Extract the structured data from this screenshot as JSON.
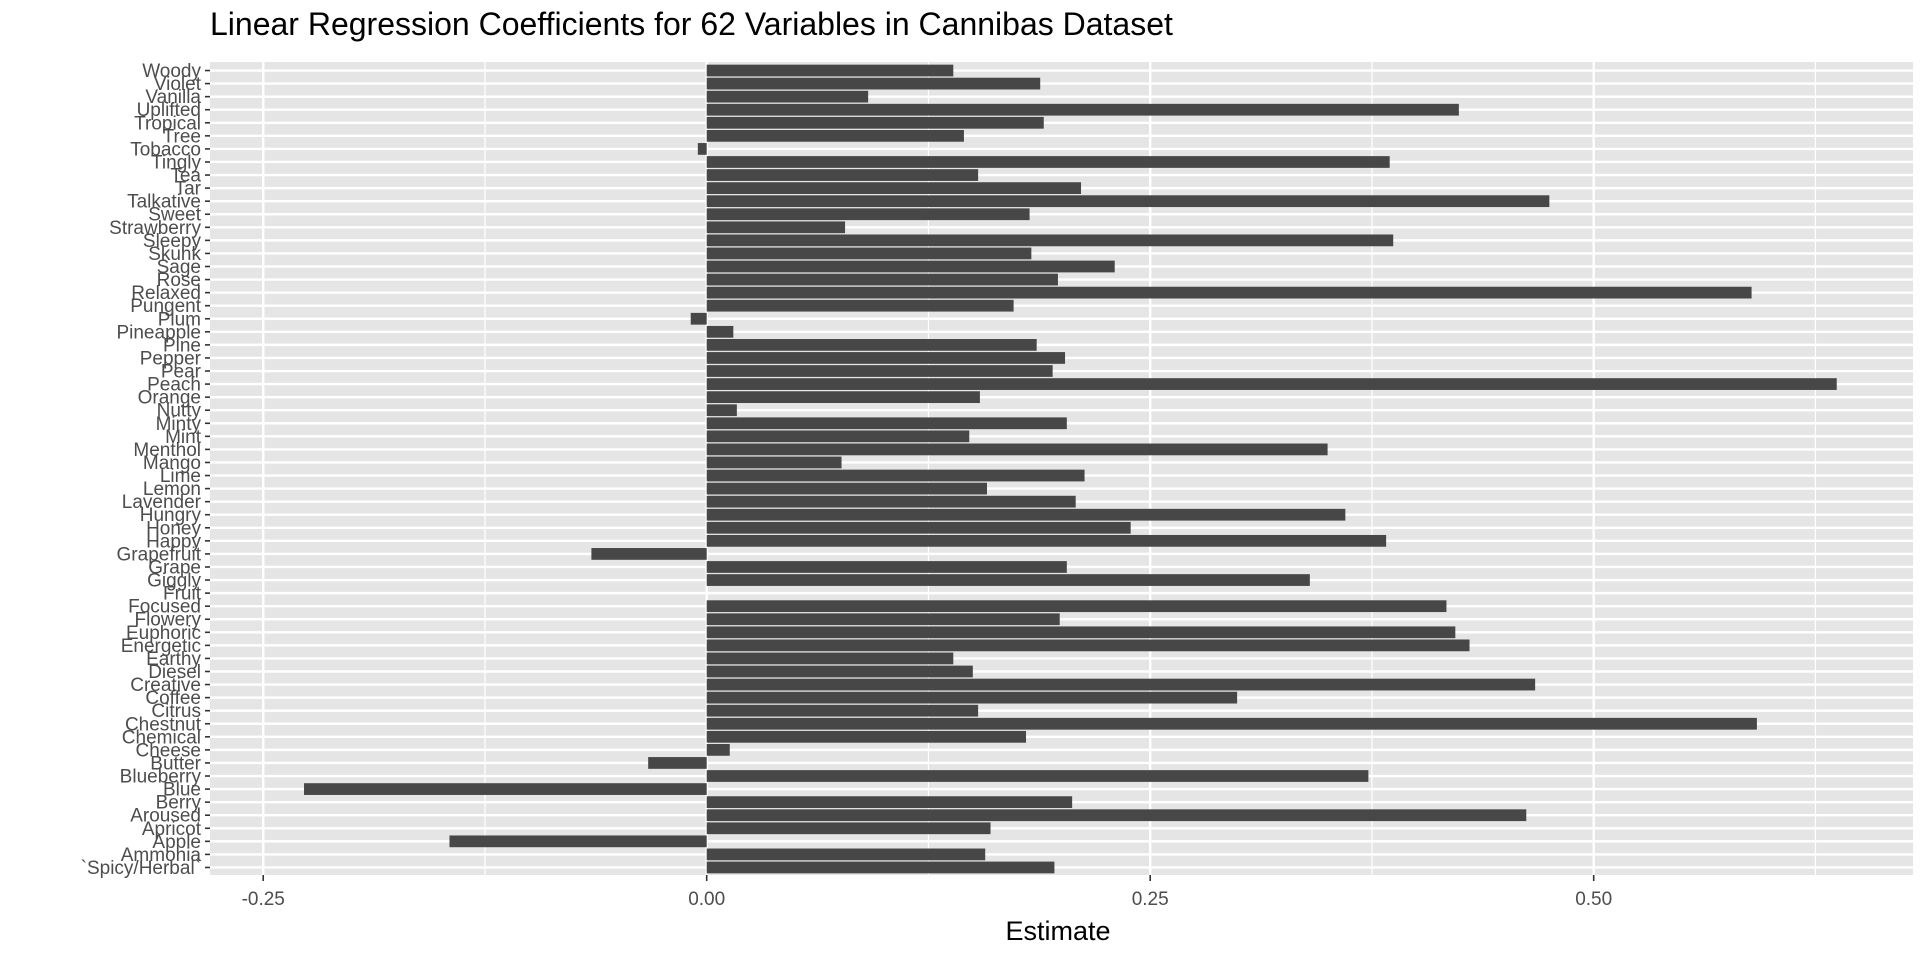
{
  "chart_data": {
    "type": "bar",
    "orientation": "horizontal",
    "title": "Linear Regression Coefficients for 62 Variables in Cannibas Dataset",
    "xlabel": "Estimate",
    "ylabel": "",
    "xlim": [
      -0.28,
      0.68
    ],
    "xticks": [
      -0.25,
      0.0,
      0.25,
      0.5
    ],
    "xtick_labels": [
      "-0.25",
      "0.00",
      "0.25",
      "0.50"
    ],
    "grid": true,
    "bar_color": "#474747",
    "panel_color": "#e5e5e5",
    "grid_color": "#ffffff",
    "categories": [
      "`Spicy/Herbal`",
      "Ammonia",
      "Apple",
      "Apricot",
      "Aroused",
      "Berry",
      "Blue",
      "Blueberry",
      "Butter",
      "Cheese",
      "Chemical",
      "Chestnut",
      "Citrus",
      "Coffee",
      "Creative",
      "Diesel",
      "Earthy",
      "Energetic",
      "Euphoric",
      "Flowery",
      "Focused",
      "Fruit",
      "Giggly",
      "Grape",
      "Grapefruit",
      "Happy",
      "Honey",
      "Hungry",
      "Lavender",
      "Lemon",
      "Lime",
      "Mango",
      "Menthol",
      "Mint",
      "Minty",
      "Nutty",
      "Orange",
      "Peach",
      "Pear",
      "Pepper",
      "Pine",
      "Pineapple",
      "Plum",
      "Pungent",
      "Relaxed",
      "Rose",
      "Sage",
      "Skunk",
      "Sleepy",
      "Strawberry",
      "Sweet",
      "Talkative",
      "Tar",
      "Tea",
      "Tingly",
      "Tobacco",
      "Tree",
      "Tropical",
      "Uplifted",
      "Vanilla",
      "Violet",
      "Woody"
    ],
    "values": [
      0.196,
      0.157,
      -0.145,
      0.16,
      0.462,
      0.206,
      -0.227,
      0.373,
      -0.033,
      0.013,
      0.18,
      0.592,
      0.153,
      0.299,
      0.467,
      0.15,
      0.139,
      0.43,
      0.422,
      0.199,
      0.417,
      0.0,
      0.34,
      0.203,
      -0.065,
      0.383,
      0.239,
      0.36,
      0.208,
      0.158,
      0.213,
      0.076,
      0.35,
      0.148,
      0.203,
      0.017,
      0.154,
      0.637,
      0.195,
      0.202,
      0.186,
      0.015,
      -0.009,
      0.173,
      0.589,
      0.198,
      0.23,
      0.183,
      0.387,
      0.078,
      0.182,
      0.475,
      0.211,
      0.153,
      0.385,
      -0.005,
      0.145,
      0.19,
      0.424,
      0.091,
      0.188,
      0.139
    ]
  }
}
